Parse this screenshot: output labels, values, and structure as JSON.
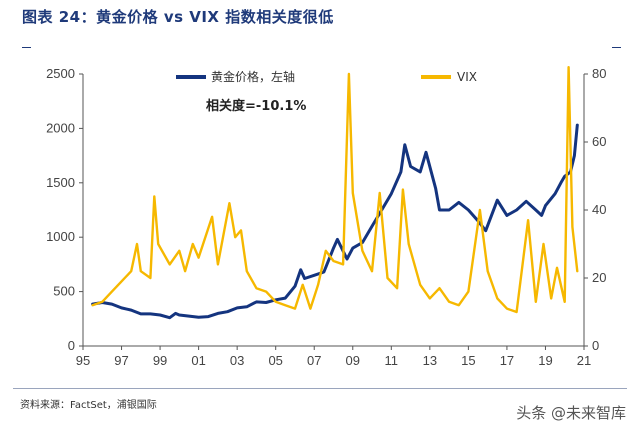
{
  "header": {
    "title": "图表 24：黄金价格 vs VIX 指数相关度很低"
  },
  "footer": {
    "source": "资料来源：FactSet，浦银国际",
    "watermark": "头条 @未来智库"
  },
  "colors": {
    "gold": "#14347f",
    "vix": "#f6b800",
    "axis": "#444444",
    "background": "#ffffff"
  },
  "chart_data": {
    "type": "line",
    "title": "",
    "annotation": "相关度=-10.1%",
    "grid": false,
    "legend_position": "top",
    "x": {
      "label": "",
      "range": [
        1995,
        2021
      ],
      "ticks": [
        1995,
        1997,
        1999,
        2001,
        2003,
        2005,
        2007,
        2009,
        2011,
        2013,
        2015,
        2017,
        2019,
        2021
      ],
      "tick_labels": [
        "95",
        "97",
        "99",
        "01",
        "03",
        "05",
        "07",
        "09",
        "11",
        "13",
        "15",
        "17",
        "19",
        "21"
      ]
    },
    "y_left": {
      "label": "",
      "range": [
        0,
        2500
      ],
      "ticks": [
        0,
        500,
        1000,
        1500,
        2000,
        2500
      ]
    },
    "y_right": {
      "label": "",
      "range": [
        0,
        80
      ],
      "ticks": [
        0,
        20,
        40,
        60,
        80
      ]
    },
    "series": [
      {
        "name": "黄金价格，左轴",
        "axis": "left",
        "color": "#14347f",
        "points": [
          [
            1995.5,
            385
          ],
          [
            1996.0,
            400
          ],
          [
            1996.5,
            385
          ],
          [
            1997.0,
            350
          ],
          [
            1997.5,
            330
          ],
          [
            1998.0,
            295
          ],
          [
            1998.5,
            295
          ],
          [
            1999.0,
            285
          ],
          [
            1999.5,
            260
          ],
          [
            1999.8,
            300
          ],
          [
            2000.0,
            285
          ],
          [
            2000.5,
            275
          ],
          [
            2001.0,
            265
          ],
          [
            2001.5,
            270
          ],
          [
            2002.0,
            300
          ],
          [
            2002.5,
            315
          ],
          [
            2003.0,
            350
          ],
          [
            2003.5,
            360
          ],
          [
            2004.0,
            405
          ],
          [
            2004.5,
            400
          ],
          [
            2005.0,
            425
          ],
          [
            2005.5,
            440
          ],
          [
            2006.0,
            550
          ],
          [
            2006.3,
            700
          ],
          [
            2006.5,
            620
          ],
          [
            2007.0,
            650
          ],
          [
            2007.5,
            680
          ],
          [
            2008.0,
            900
          ],
          [
            2008.2,
            980
          ],
          [
            2008.7,
            800
          ],
          [
            2009.0,
            900
          ],
          [
            2009.5,
            950
          ],
          [
            2010.0,
            1100
          ],
          [
            2010.5,
            1250
          ],
          [
            2011.0,
            1400
          ],
          [
            2011.5,
            1600
          ],
          [
            2011.7,
            1850
          ],
          [
            2012.0,
            1650
          ],
          [
            2012.5,
            1600
          ],
          [
            2012.8,
            1780
          ],
          [
            2013.3,
            1450
          ],
          [
            2013.5,
            1250
          ],
          [
            2014.0,
            1250
          ],
          [
            2014.5,
            1320
          ],
          [
            2015.0,
            1250
          ],
          [
            2015.5,
            1150
          ],
          [
            2015.9,
            1060
          ],
          [
            2016.5,
            1340
          ],
          [
            2017.0,
            1200
          ],
          [
            2017.5,
            1250
          ],
          [
            2018.0,
            1330
          ],
          [
            2018.5,
            1250
          ],
          [
            2018.8,
            1200
          ],
          [
            2019.0,
            1290
          ],
          [
            2019.5,
            1400
          ],
          [
            2019.8,
            1500
          ],
          [
            2020.0,
            1560
          ],
          [
            2020.3,
            1600
          ],
          [
            2020.5,
            1750
          ],
          [
            2020.65,
            2030
          ]
        ]
      },
      {
        "name": "VIX",
        "axis": "right",
        "color": "#f6b800",
        "points": [
          [
            1995.5,
            12
          ],
          [
            1996.0,
            13
          ],
          [
            1996.5,
            16
          ],
          [
            1997.0,
            19
          ],
          [
            1997.5,
            22
          ],
          [
            1997.8,
            30
          ],
          [
            1998.0,
            22
          ],
          [
            1998.5,
            20
          ],
          [
            1998.7,
            44
          ],
          [
            1998.9,
            30
          ],
          [
            1999.5,
            24
          ],
          [
            2000.0,
            28
          ],
          [
            2000.3,
            22
          ],
          [
            2000.7,
            30
          ],
          [
            2001.0,
            26
          ],
          [
            2001.7,
            38
          ],
          [
            2002.0,
            24
          ],
          [
            2002.6,
            42
          ],
          [
            2002.9,
            32
          ],
          [
            2003.2,
            34
          ],
          [
            2003.5,
            22
          ],
          [
            2004.0,
            17
          ],
          [
            2004.5,
            16
          ],
          [
            2005.0,
            13
          ],
          [
            2005.5,
            12
          ],
          [
            2006.0,
            11
          ],
          [
            2006.4,
            18
          ],
          [
            2006.8,
            11
          ],
          [
            2007.2,
            18
          ],
          [
            2007.6,
            28
          ],
          [
            2008.0,
            25
          ],
          [
            2008.5,
            24
          ],
          [
            2008.8,
            80
          ],
          [
            2009.0,
            45
          ],
          [
            2009.5,
            28
          ],
          [
            2010.0,
            22
          ],
          [
            2010.4,
            45
          ],
          [
            2010.8,
            20
          ],
          [
            2011.3,
            17
          ],
          [
            2011.6,
            46
          ],
          [
            2011.9,
            30
          ],
          [
            2012.5,
            18
          ],
          [
            2013.0,
            14
          ],
          [
            2013.5,
            17
          ],
          [
            2014.0,
            13
          ],
          [
            2014.5,
            12
          ],
          [
            2015.0,
            16
          ],
          [
            2015.6,
            40
          ],
          [
            2016.0,
            22
          ],
          [
            2016.5,
            14
          ],
          [
            2017.0,
            11
          ],
          [
            2017.5,
            10
          ],
          [
            2018.1,
            37
          ],
          [
            2018.5,
            13
          ],
          [
            2018.9,
            30
          ],
          [
            2019.3,
            14
          ],
          [
            2019.6,
            23
          ],
          [
            2020.0,
            13
          ],
          [
            2020.2,
            82
          ],
          [
            2020.4,
            35
          ],
          [
            2020.65,
            22
          ]
        ]
      }
    ]
  }
}
